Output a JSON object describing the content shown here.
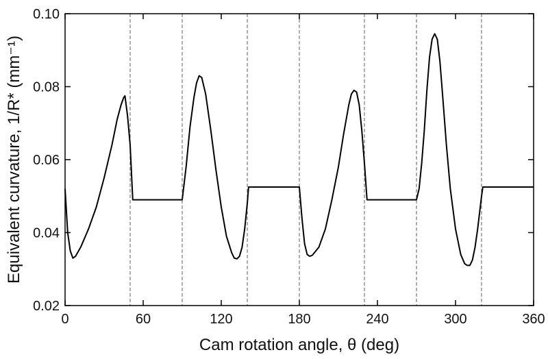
{
  "chart_data": {
    "type": "line",
    "title": "",
    "xlabel": "Cam rotation angle, θ (deg)",
    "ylabel": "Equivalent curvature, 1/R* (mm⁻¹)",
    "xlim": [
      0,
      360
    ],
    "ylim": [
      0.02,
      0.1
    ],
    "xticks": [
      0,
      60,
      120,
      180,
      240,
      300,
      360
    ],
    "xtick_labels": [
      "0",
      "60",
      "120",
      "180",
      "240",
      "300",
      "360"
    ],
    "yticks": [
      0.02,
      0.04,
      0.06,
      0.08,
      0.1
    ],
    "ytick_labels": [
      "0.02",
      "0.04",
      "0.06",
      "0.08",
      "0.10"
    ],
    "grid": false,
    "legend": "none",
    "line_color": "#000000",
    "dashed_line_color": "#777777",
    "vertical_dashed_lines_x": [
      50,
      90,
      140,
      180,
      230,
      270,
      320
    ],
    "series": [
      {
        "x": [
          0,
          2,
          4,
          6,
          8,
          12,
          18,
          24,
          30,
          36,
          40,
          43,
          45,
          46,
          48,
          50,
          52,
          60,
          70,
          80,
          90,
          93,
          96,
          99,
          101,
          103,
          105,
          108,
          112,
          116,
          120,
          124,
          128,
          130,
          132,
          134,
          136,
          138,
          140,
          141,
          150,
          160,
          170,
          180,
          182,
          184,
          186,
          188,
          190,
          195,
          200,
          205,
          210,
          214,
          218,
          220,
          222,
          224,
          226,
          228,
          230,
          232,
          240,
          250,
          260,
          270,
          272,
          274,
          276,
          278,
          280,
          282,
          284,
          286,
          288,
          290,
          293,
          296,
          300,
          304,
          307,
          309,
          311,
          313,
          315,
          317,
          319,
          320,
          321,
          330,
          340,
          350,
          360
        ],
        "y": [
          0.052,
          0.04,
          0.035,
          0.033,
          0.0335,
          0.036,
          0.041,
          0.047,
          0.055,
          0.064,
          0.071,
          0.075,
          0.077,
          0.0775,
          0.072,
          0.064,
          0.049,
          0.049,
          0.049,
          0.049,
          0.049,
          0.058,
          0.069,
          0.077,
          0.081,
          0.083,
          0.0825,
          0.078,
          0.068,
          0.057,
          0.047,
          0.039,
          0.0345,
          0.033,
          0.0328,
          0.0335,
          0.036,
          0.041,
          0.048,
          0.0525,
          0.0525,
          0.0525,
          0.0525,
          0.0525,
          0.044,
          0.037,
          0.034,
          0.0335,
          0.0338,
          0.036,
          0.041,
          0.049,
          0.058,
          0.067,
          0.075,
          0.078,
          0.079,
          0.0785,
          0.075,
          0.068,
          0.059,
          0.049,
          0.049,
          0.049,
          0.049,
          0.049,
          0.052,
          0.059,
          0.068,
          0.079,
          0.088,
          0.093,
          0.0945,
          0.093,
          0.087,
          0.078,
          0.064,
          0.052,
          0.041,
          0.034,
          0.0315,
          0.031,
          0.031,
          0.0325,
          0.036,
          0.041,
          0.047,
          0.05,
          0.0525,
          0.0525,
          0.0525,
          0.0525,
          0.0525
        ]
      }
    ]
  }
}
